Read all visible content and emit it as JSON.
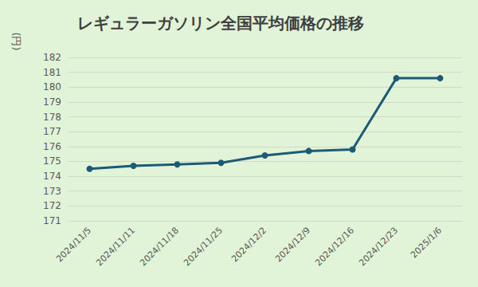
{
  "chart_data": {
    "type": "line",
    "title": "レギュラーガソリン全国平均価格の推移",
    "y_label": "(円)",
    "categories": [
      "2024/11/5",
      "2024/11/11",
      "2024/11/18",
      "2024/11/25",
      "2024/12/2",
      "2024/12/9",
      "2024/12/16",
      "2024/12/23",
      "2025/1/6"
    ],
    "values": [
      174.5,
      174.7,
      174.8,
      174.9,
      175.4,
      175.7,
      175.8,
      180.6,
      180.6
    ],
    "color": "#1d5a78",
    "marker": "circle",
    "ylim": [
      171,
      182
    ],
    "yticks": [
      171,
      172,
      173,
      174,
      175,
      176,
      177,
      178,
      179,
      180,
      181,
      182
    ],
    "grid": true
  }
}
